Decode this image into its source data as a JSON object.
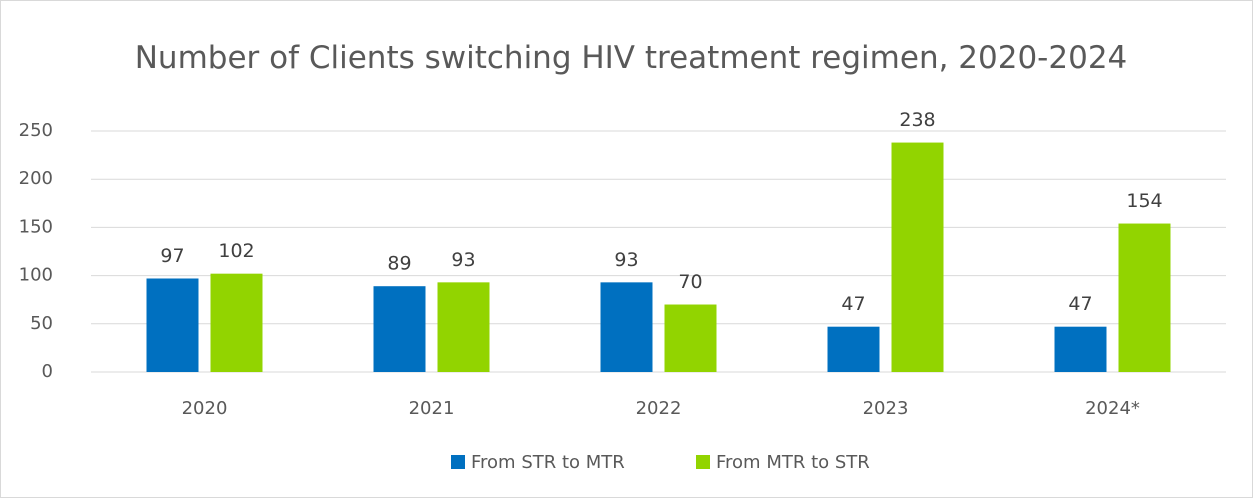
{
  "chart_data": {
    "type": "bar",
    "title": "Number of Clients switching HIV treatment regimen, 2020-2024",
    "categories": [
      "2020",
      "2021",
      "2022",
      "2023",
      "2024*"
    ],
    "series": [
      {
        "name": "From STR to MTR",
        "color": "#0070c0",
        "values": [
          97,
          89,
          93,
          47,
          47
        ]
      },
      {
        "name": "From MTR to STR",
        "color": "#92d400",
        "values": [
          102,
          93,
          70,
          238,
          154
        ]
      }
    ],
    "ylim": [
      0,
      250
    ],
    "yticks": [
      0,
      50,
      100,
      150,
      200,
      250
    ],
    "grid": true,
    "legend": "bottom"
  }
}
